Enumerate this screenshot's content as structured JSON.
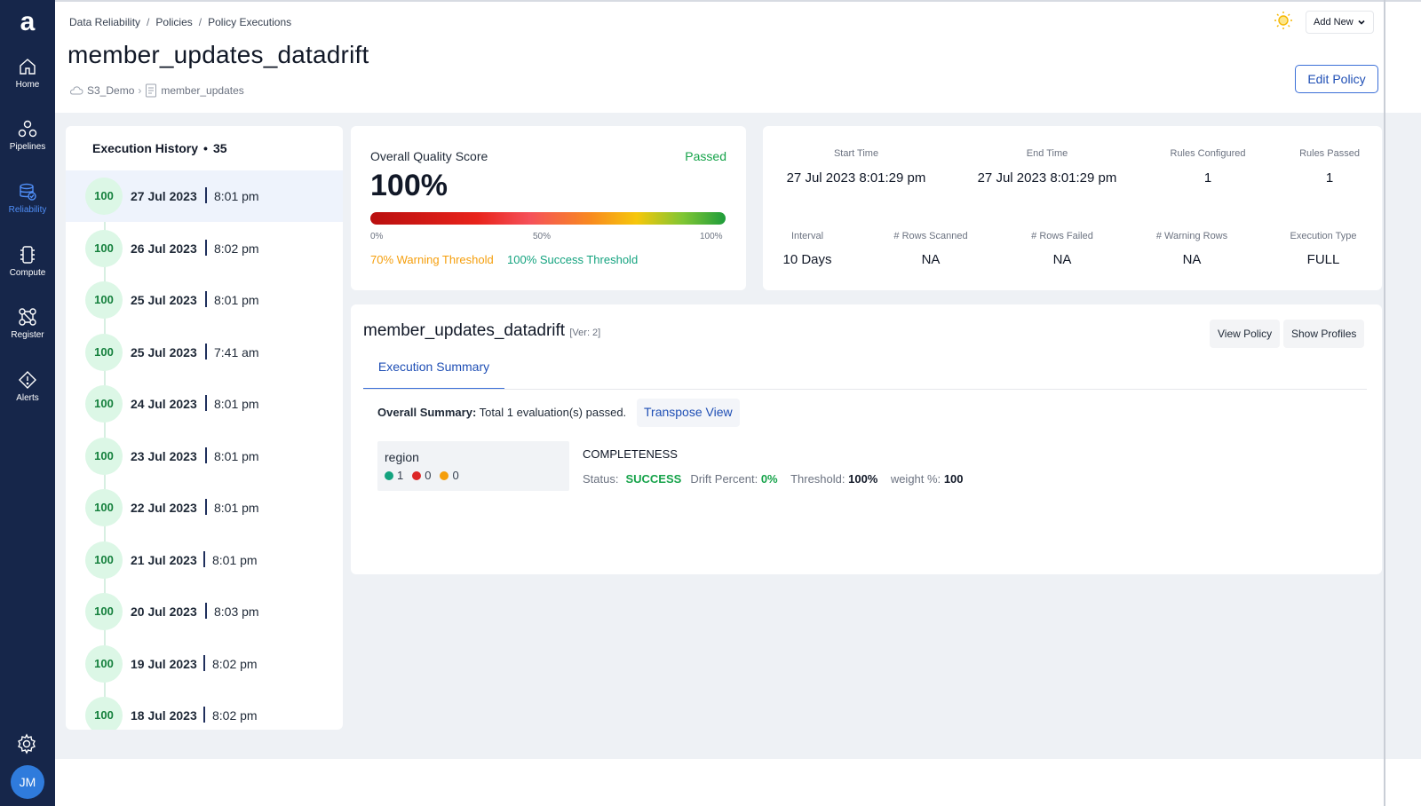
{
  "app": {
    "logo_letter": "a"
  },
  "nav": {
    "items": [
      {
        "label": "Home",
        "icon": "home-icon"
      },
      {
        "label": "Pipelines",
        "icon": "pipelines-icon"
      },
      {
        "label": "Reliability",
        "icon": "reliability-icon",
        "active": true
      },
      {
        "label": "Compute",
        "icon": "compute-icon"
      },
      {
        "label": "Register",
        "icon": "register-icon"
      },
      {
        "label": "Alerts",
        "icon": "alerts-icon"
      }
    ],
    "settings_icon": "gear-icon",
    "avatar_initials": "JM"
  },
  "breadcrumb": [
    "Data Reliability",
    "Policies",
    "Policy Executions"
  ],
  "page": {
    "title": "member_updates_datadrift",
    "datasource": "S3_Demo",
    "asset": "member_updates"
  },
  "toolbar": {
    "add_new": "Add New",
    "edit_policy": "Edit Policy"
  },
  "history": {
    "title": "Execution History",
    "count": "35",
    "rows": [
      {
        "score": "100",
        "date": "27 Jul 2023",
        "time": "8:01 pm"
      },
      {
        "score": "100",
        "date": "26 Jul 2023",
        "time": "8:02 pm"
      },
      {
        "score": "100",
        "date": "25 Jul 2023",
        "time": "8:01 pm"
      },
      {
        "score": "100",
        "date": "25 Jul 2023",
        "time": "7:41 am"
      },
      {
        "score": "100",
        "date": "24 Jul 2023",
        "time": "8:01 pm"
      },
      {
        "score": "100",
        "date": "23 Jul 2023",
        "time": "8:01 pm"
      },
      {
        "score": "100",
        "date": "22 Jul 2023",
        "time": "8:01 pm"
      },
      {
        "score": "100",
        "date": "21 Jul 2023",
        "time": "8:01 pm"
      },
      {
        "score": "100",
        "date": "20 Jul 2023",
        "time": "8:03 pm"
      },
      {
        "score": "100",
        "date": "19 Jul 2023",
        "time": "8:02 pm"
      },
      {
        "score": "100",
        "date": "18 Jul 2023",
        "time": "8:02 pm"
      }
    ]
  },
  "quality": {
    "label": "Overall Quality Score",
    "status": "Passed",
    "score": "100%",
    "ticks": [
      "0%",
      "50%",
      "100%"
    ],
    "warning_threshold": "70% Warning Threshold",
    "success_threshold": "100% Success Threshold"
  },
  "stats": {
    "start_time_label": "Start Time",
    "start_time": "27 Jul 2023 8:01:29 pm",
    "end_time_label": "End Time",
    "end_time": "27 Jul 2023 8:01:29 pm",
    "rules_configured_label": "Rules Configured",
    "rules_configured": "1",
    "rules_passed_label": "Rules Passed",
    "rules_passed": "1",
    "interval_label": "Interval",
    "interval": "10 Days",
    "rows_scanned_label": "# Rows Scanned",
    "rows_scanned": "NA",
    "rows_failed_label": "# Rows Failed",
    "rows_failed": "NA",
    "warning_rows_label": "# Warning Rows",
    "warning_rows": "NA",
    "execution_type_label": "Execution Type",
    "execution_type": "FULL"
  },
  "summary": {
    "title": "member_updates_datadrift",
    "version": "[Ver: 2]",
    "view_policy": "View Policy",
    "show_profiles": "Show Profiles",
    "tab": "Execution Summary",
    "overall_label": "Overall Summary:",
    "overall_text": "Total 1 evaluation(s) passed.",
    "transpose": "Transpose View",
    "region": {
      "name": "region",
      "green": "1",
      "red": "0",
      "orange": "0"
    },
    "rule": "COMPLETENESS",
    "status_label": "Status:",
    "status": "SUCCESS",
    "drift_label": "Drift Percent:",
    "drift": "0%",
    "threshold_label": "Threshold:",
    "threshold": "100%",
    "weight_label": "weight %:",
    "weight": "100"
  },
  "colors": {
    "sidebar": "#16264a",
    "accent": "#3b6fd8",
    "success": "#16a34a",
    "warning": "#f59e0b",
    "danger": "#dc2626",
    "teal": "#14a37f"
  }
}
